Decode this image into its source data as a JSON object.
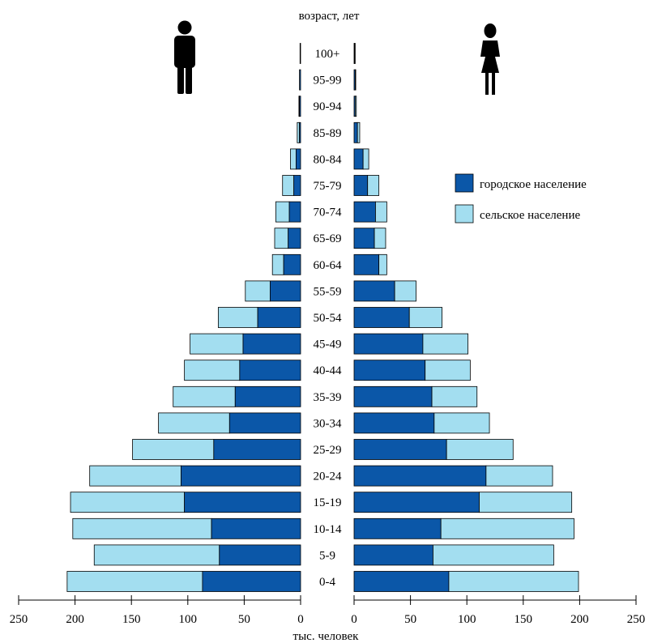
{
  "chart_data": {
    "type": "bar",
    "subtype": "population-pyramid",
    "orientation": "horizontal",
    "ylabel": "возраст, лет",
    "xlabel": "тыс. человек",
    "categories": [
      "0-4",
      "5-9",
      "10-14",
      "15-19",
      "20-24",
      "25-29",
      "30-34",
      "35-39",
      "40-44",
      "45-49",
      "50-54",
      "55-59",
      "60-64",
      "65-69",
      "70-74",
      "75-79",
      "80-84",
      "85-89",
      "90-94",
      "95-99",
      "100+"
    ],
    "colors": {
      "urban": "#0b57a8",
      "rural": "#a3def0"
    },
    "legend": [
      {
        "key": "urban",
        "label": "городское население"
      },
      {
        "key": "rural",
        "label": "сельское население"
      }
    ],
    "legend_position": "right",
    "xlim": [
      0,
      250
    ],
    "xticks": [
      "250",
      "200",
      "150",
      "100",
      "50",
      "0",
      "0",
      "50",
      "100",
      "150",
      "200",
      "250"
    ],
    "xtick_values": [
      250,
      200,
      150,
      100,
      50,
      0
    ],
    "male": {
      "icon": "man-silhouette-icon",
      "urban": [
        87,
        72,
        79,
        103,
        106,
        77,
        63,
        58,
        54,
        51,
        38,
        27,
        15,
        11,
        10,
        6,
        4,
        1,
        1,
        1,
        0.5
      ],
      "total": [
        207,
        183,
        202,
        204,
        187,
        149,
        126,
        113,
        103,
        98,
        73,
        49,
        25,
        23,
        22,
        16,
        9,
        3,
        1.5,
        1,
        0.5
      ]
    },
    "female": {
      "icon": "woman-silhouette-icon",
      "urban": [
        84,
        70,
        77,
        111,
        117,
        82,
        71,
        69,
        63,
        61,
        49,
        36,
        22,
        18,
        19,
        12,
        8,
        3,
        1,
        1,
        0.5
      ],
      "total": [
        199,
        177,
        195,
        193,
        176,
        141,
        120,
        109,
        103,
        101,
        78,
        55,
        29,
        28,
        29,
        22,
        13,
        5,
        2,
        1.5,
        1
      ]
    }
  }
}
